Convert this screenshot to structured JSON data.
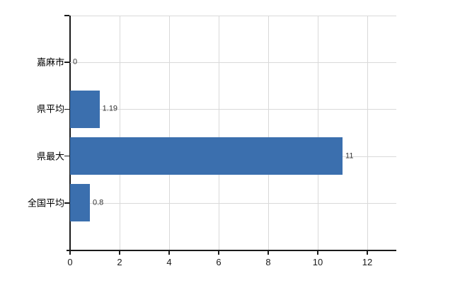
{
  "chart_data": {
    "type": "bar",
    "orientation": "horizontal",
    "title": "",
    "categories": [
      "嘉麻市",
      "県平均",
      "県最大",
      "全国平均"
    ],
    "values": [
      0,
      1.19,
      11,
      0.8
    ],
    "value_labels": [
      "0",
      "1.19",
      "11",
      "0.8"
    ],
    "x_ticks": [
      0,
      2,
      4,
      6,
      8,
      10,
      12
    ],
    "xlim": [
      0,
      13.17
    ],
    "grid": true,
    "legend": false,
    "colors": {
      "bar": "#3b6fae",
      "axis": "#1a1a1a",
      "grid": "#d9d9d9",
      "category_label": "#000000",
      "value_label": "#333333",
      "tick_label": "#1a1a1a",
      "background": "#ffffff"
    }
  }
}
